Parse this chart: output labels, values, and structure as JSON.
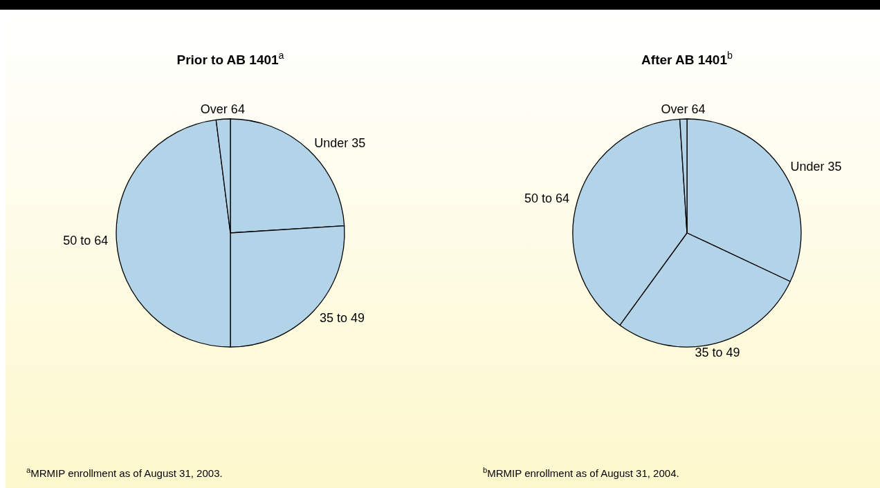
{
  "chart_data": [
    {
      "type": "pie",
      "title": "Prior to AB 1401$^{a}$",
      "categories": [
        "Under 35",
        "35 to 49",
        "50 to 64",
        "Over 64"
      ],
      "values": [
        24,
        26,
        48,
        2
      ],
      "colors": [
        "#b3d3e8",
        "#b3d3e8",
        "#b3d3e8",
        "#b3d3e8"
      ],
      "annotations": [
        "$^{a}$MRMIP enrollment as of August 31, 2003."
      ]
    },
    {
      "type": "pie",
      "title": "After AB 1401$^{b}$",
      "categories": [
        "Under 35",
        "35 to 49",
        "50 to 64",
        "Over 64"
      ],
      "values": [
        32,
        28,
        39,
        1
      ],
      "colors": [
        "#b3d3e8",
        "#b3d3e8",
        "#b3d3e8",
        "#b3d3e8"
      ],
      "annotations": [
        "$^{b}$MRMIP enrollment as of August 31, 2004."
      ]
    }
  ]
}
